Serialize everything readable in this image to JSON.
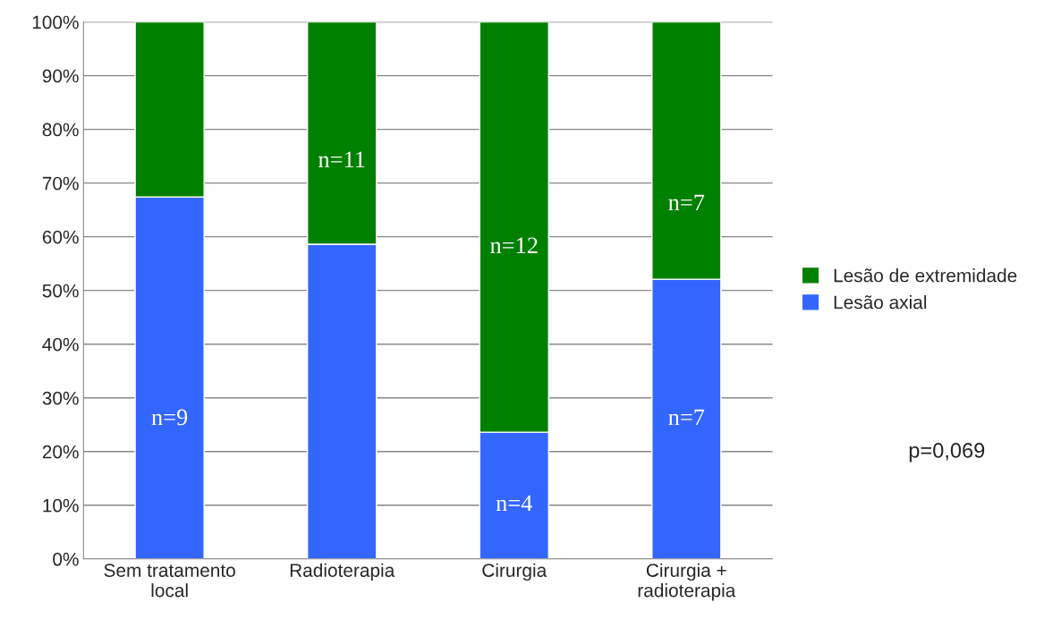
{
  "chart_data": {
    "type": "bar",
    "stacked": true,
    "categories": [
      "Sem tratamento\nlocal",
      "Radioterapia",
      "Cirurgia",
      "Cirurgia +\nradioterapia"
    ],
    "series": [
      {
        "name": "Lesão axial",
        "color": "#3366ff",
        "values": [
          67.4,
          58.6,
          23.6,
          52.1
        ]
      },
      {
        "name": "Lesão de extremidade",
        "color": "#008000",
        "values": [
          32.6,
          41.4,
          76.4,
          47.9
        ]
      }
    ],
    "ylim": [
      0,
      100
    ],
    "yticks": [
      {
        "value": 0,
        "label": "0%"
      },
      {
        "value": 10,
        "label": "10%"
      },
      {
        "value": 20,
        "label": "20%"
      },
      {
        "value": 30,
        "label": "30%"
      },
      {
        "value": 40,
        "label": "40%"
      },
      {
        "value": 50,
        "label": "50%"
      },
      {
        "value": 60,
        "label": "60%"
      },
      {
        "value": 70,
        "label": "70%"
      },
      {
        "value": 80,
        "label": "80%"
      },
      {
        "value": 90,
        "label": "90%"
      },
      {
        "value": 100,
        "label": "100%"
      }
    ],
    "grid": "y",
    "legend": "right",
    "annotations": [
      "n=9",
      "n=11",
      "n=12",
      "n=4",
      "n=7",
      "n=7",
      "p=0,069"
    ]
  }
}
